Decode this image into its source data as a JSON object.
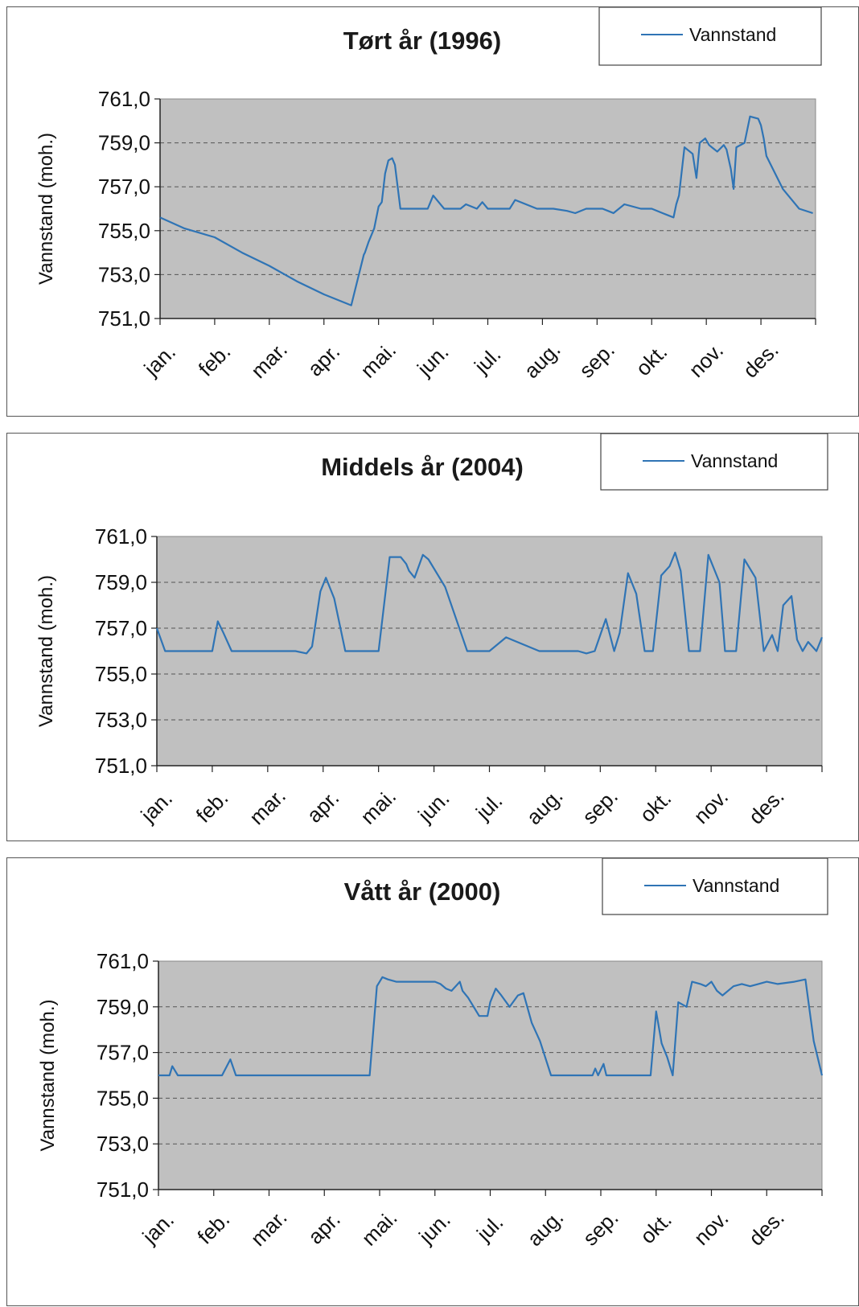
{
  "chart_data": [
    {
      "type": "line",
      "title": "Tørt år (1996)",
      "ylabel": "Vannstand (moh.)",
      "ylim": [
        751,
        761
      ],
      "ytick_labels": [
        "761,0",
        "759,0",
        "757,0",
        "755,0",
        "753,0",
        "751,0"
      ],
      "categories": [
        "jan.",
        "feb.",
        "mar.",
        "apr.",
        "mai.",
        "jun.",
        "jul.",
        "aug.",
        "sep.",
        "okt.",
        "nov.",
        "des."
      ],
      "legend": {
        "position": "top-right",
        "label": "Vannstand"
      },
      "grid": true,
      "series": [
        {
          "name": "Vannstand",
          "color": "#2f74b5",
          "x": [
            0,
            0.45,
            1.0,
            1.5,
            2.0,
            2.5,
            3.0,
            3.5,
            3.73,
            3.75,
            3.82,
            3.92,
            4.0,
            4.06,
            4.12,
            4.18,
            4.25,
            4.3,
            4.4,
            4.55,
            4.7,
            4.9,
            5.0,
            5.2,
            5.5,
            5.6,
            5.8,
            5.9,
            6.0,
            6.1,
            6.25,
            6.3,
            6.4,
            6.5,
            6.9,
            7.2,
            7.45,
            7.6,
            7.8,
            7.9,
            8.1,
            8.2,
            8.3,
            8.5,
            8.8,
            9.0,
            9.2,
            9.3,
            9.4,
            9.45,
            9.5,
            9.6,
            9.75,
            9.82,
            9.88,
            9.98,
            10.05,
            10.1,
            10.2,
            10.32,
            10.37,
            10.45,
            10.5,
            10.55,
            10.7,
            10.8,
            10.95,
            11.0,
            11.05,
            11.1,
            11.4,
            11.7,
            11.95
          ],
          "y": [
            755.6,
            755.1,
            754.7,
            754.0,
            753.4,
            752.7,
            752.1,
            751.6,
            753.9,
            754.0,
            754.5,
            755.1,
            756.1,
            756.3,
            757.6,
            758.2,
            758.3,
            758.0,
            756.0,
            756.0,
            756.0,
            756.0,
            756.6,
            756.0,
            756.0,
            756.2,
            756.0,
            756.3,
            756.0,
            756.0,
            756.0,
            756.0,
            756.0,
            756.4,
            756.0,
            756.0,
            755.9,
            755.8,
            756.0,
            756.0,
            756.0,
            755.9,
            755.8,
            756.2,
            756.0,
            756.0,
            755.8,
            755.7,
            755.6,
            756.2,
            756.6,
            758.8,
            758.5,
            757.4,
            759.0,
            759.2,
            758.9,
            758.8,
            758.6,
            758.9,
            758.7,
            757.8,
            756.9,
            758.8,
            759.0,
            760.2,
            760.1,
            759.8,
            759.2,
            758.4,
            756.9,
            756.0,
            755.8
          ]
        }
      ]
    },
    {
      "type": "line",
      "title": "Middels år (2004)",
      "ylabel": "Vannstand (moh.)",
      "ylim": [
        751,
        761
      ],
      "ytick_labels": [
        "761,0",
        "759,0",
        "757,0",
        "755,0",
        "753,0",
        "751,0"
      ],
      "categories": [
        "jan.",
        "feb.",
        "mar.",
        "apr.",
        "mai.",
        "jun.",
        "jul.",
        "aug.",
        "sep.",
        "okt.",
        "nov.",
        "des."
      ],
      "legend": {
        "position": "top-right",
        "label": "Vannstand"
      },
      "grid": true,
      "series": [
        {
          "name": "Vannstand",
          "color": "#2f74b5",
          "x": [
            0,
            0.15,
            0.4,
            1.0,
            1.1,
            1.2,
            1.35,
            1.5,
            2.0,
            2.5,
            2.7,
            2.8,
            2.95,
            3.05,
            3.2,
            3.4,
            3.65,
            3.85,
            4.0,
            4.2,
            4.4,
            4.5,
            4.55,
            4.65,
            4.8,
            4.9,
            5.2,
            5.6,
            5.7,
            5.8,
            6.0,
            6.3,
            6.9,
            7.3,
            7.5,
            7.6,
            7.75,
            7.9,
            8.1,
            8.25,
            8.35,
            8.5,
            8.65,
            8.8,
            8.95,
            9.1,
            9.25,
            9.35,
            9.45,
            9.6,
            9.8,
            9.95,
            10.15,
            10.25,
            10.35,
            10.45,
            10.6,
            10.8,
            10.95,
            11.1,
            11.2,
            11.3,
            11.45,
            11.55,
            11.65,
            11.75,
            11.9,
            12.0
          ],
          "y": [
            757.0,
            756.0,
            756.0,
            756.0,
            757.3,
            756.8,
            756.0,
            756.0,
            756.0,
            756.0,
            755.9,
            756.2,
            758.6,
            759.2,
            758.3,
            756.0,
            756.0,
            756.0,
            756.0,
            760.1,
            760.1,
            759.8,
            759.5,
            759.2,
            760.2,
            760.0,
            758.8,
            756.0,
            756.0,
            756.0,
            756.0,
            756.6,
            756.0,
            756.0,
            756.0,
            756.0,
            755.9,
            756.0,
            757.4,
            756.0,
            756.8,
            759.4,
            758.5,
            756.0,
            756.0,
            759.3,
            759.7,
            760.3,
            759.5,
            756.0,
            756.0,
            760.2,
            759.0,
            756.0,
            756.0,
            756.0,
            760.0,
            759.2,
            756.0,
            756.7,
            756.0,
            758.0,
            758.4,
            756.5,
            756.0,
            756.4,
            756.0,
            756.6
          ]
        }
      ]
    },
    {
      "type": "line",
      "title": "Vått år (2000)",
      "ylabel": "Vannstand (moh.)",
      "ylim": [
        751,
        761
      ],
      "ytick_labels": [
        "761,0",
        "759,0",
        "757,0",
        "755,0",
        "753,0",
        "751,0"
      ],
      "categories": [
        "jan.",
        "feb.",
        "mar.",
        "apr.",
        "mai.",
        "jun.",
        "jul.",
        "aug.",
        "sep.",
        "okt.",
        "nov.",
        "des."
      ],
      "legend": {
        "position": "top-right",
        "label": "Vannstand"
      },
      "grid": true,
      "series": [
        {
          "name": "Vannstand",
          "color": "#2f74b5",
          "x": [
            0,
            0.2,
            0.25,
            0.35,
            0.45,
            1.0,
            1.15,
            1.3,
            1.4,
            2.0,
            3.0,
            3.5,
            3.72,
            3.82,
            3.95,
            4.0,
            4.05,
            4.15,
            4.3,
            4.8,
            5.0,
            5.1,
            5.2,
            5.3,
            5.45,
            5.5,
            5.6,
            5.8,
            5.95,
            6.0,
            6.1,
            6.2,
            6.35,
            6.5,
            6.6,
            6.75,
            6.9,
            7.1,
            7.5,
            7.85,
            7.9,
            7.95,
            8.05,
            8.1,
            8.15,
            8.5,
            8.6,
            8.65,
            8.8,
            8.9,
            9.0,
            9.1,
            9.2,
            9.3,
            9.4,
            9.55,
            9.65,
            9.8,
            9.9,
            10.0,
            10.1,
            10.2,
            10.4,
            10.55,
            10.7,
            10.85,
            11.0,
            11.2,
            11.5,
            11.7,
            11.85,
            12.0
          ],
          "y": [
            756.0,
            756.0,
            756.4,
            756.0,
            756.0,
            756.0,
            756.0,
            756.7,
            756.0,
            756.0,
            756.0,
            756.0,
            756.0,
            756.0,
            759.9,
            760.1,
            760.3,
            760.2,
            760.1,
            760.1,
            760.1,
            760.0,
            759.8,
            759.7,
            760.1,
            759.7,
            759.4,
            758.6,
            758.6,
            759.2,
            759.8,
            759.5,
            759.0,
            759.5,
            759.6,
            758.3,
            757.5,
            756.0,
            756.0,
            756.0,
            756.3,
            756.0,
            756.5,
            756.0,
            756.0,
            756.0,
            756.0,
            756.0,
            756.0,
            756.0,
            758.8,
            757.4,
            756.8,
            756.0,
            759.2,
            759.0,
            760.1,
            760.0,
            759.9,
            760.1,
            759.7,
            759.5,
            759.9,
            760.0,
            759.9,
            760.0,
            760.1,
            760.0,
            760.1,
            760.2,
            757.5,
            756.0
          ]
        }
      ]
    }
  ]
}
